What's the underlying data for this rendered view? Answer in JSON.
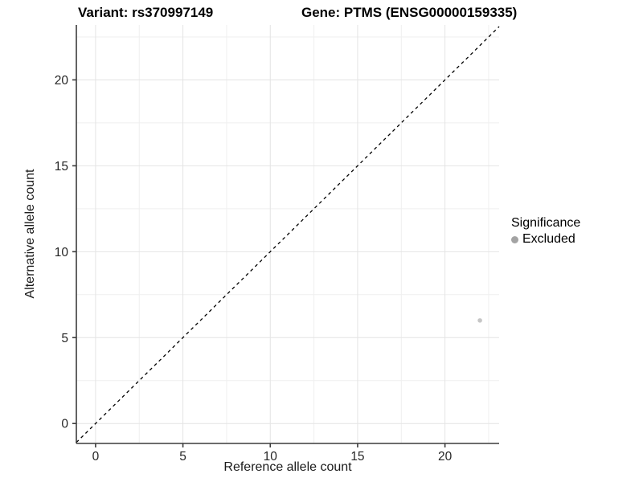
{
  "chart_data": {
    "type": "scatter",
    "title_left": "Variant: rs370997149",
    "title_right": "Gene: PTMS (ENSG00000159335)",
    "xlabel": "Reference allele count",
    "ylabel": "Alternative allele count",
    "xlim": [
      -1.1,
      23.1
    ],
    "ylim": [
      -1.16,
      23.2
    ],
    "x_major_ticks": [
      0,
      5,
      10,
      15,
      20
    ],
    "y_major_ticks": [
      0,
      5,
      10,
      15,
      20
    ],
    "x_minor_ticks": [
      2.5,
      7.5,
      12.5,
      17.5,
      22.5
    ],
    "y_minor_ticks": [
      2.5,
      7.5,
      12.5,
      17.5,
      22.5
    ],
    "grid": true,
    "reference_line": {
      "type": "identity",
      "slope": 1,
      "intercept": 0,
      "style": "dashed",
      "color": "#000000"
    },
    "series": [
      {
        "name": "Excluded",
        "color": "#c6c6c6",
        "points": [
          {
            "x": 22,
            "y": 6
          }
        ]
      }
    ],
    "legend": {
      "title": "Significance",
      "position": "right",
      "items": [
        {
          "label": "Excluded",
          "color": "#a3a3a3"
        }
      ]
    },
    "style_colors": {
      "axis_line": "#3c3c3c",
      "tick_label": "#262626",
      "grid_major": "#e4e4e4",
      "grid_minor": "#efefef",
      "background": "#ffffff"
    }
  }
}
